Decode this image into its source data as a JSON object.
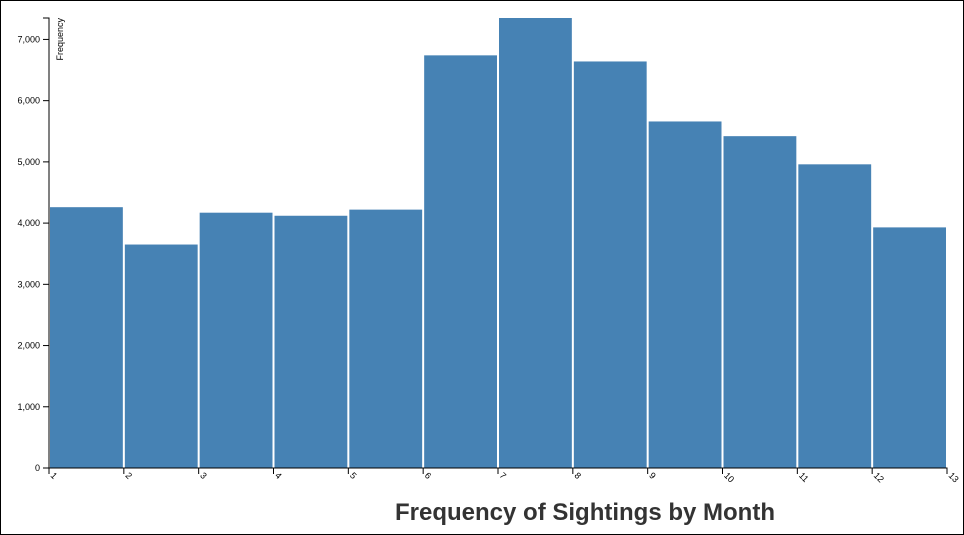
{
  "chart_data": {
    "type": "bar",
    "title": "Frequency of Sightings by Month",
    "xlabel": "",
    "ylabel": "Frequency",
    "x_ticks": [
      "1",
      "2",
      "3",
      "4",
      "5",
      "6",
      "7",
      "8",
      "9",
      "10",
      "11",
      "12",
      "13"
    ],
    "bins": [
      {
        "x0": 1,
        "x1": 2,
        "value": 4260
      },
      {
        "x0": 2,
        "x1": 3,
        "value": 3650
      },
      {
        "x0": 3,
        "x1": 4,
        "value": 4170
      },
      {
        "x0": 4,
        "x1": 5,
        "value": 4120
      },
      {
        "x0": 5,
        "x1": 6,
        "value": 4220
      },
      {
        "x0": 6,
        "x1": 7,
        "value": 6740
      },
      {
        "x0": 7,
        "x1": 8,
        "value": 7350
      },
      {
        "x0": 8,
        "x1": 9,
        "value": 6640
      },
      {
        "x0": 9,
        "x1": 10,
        "value": 5660
      },
      {
        "x0": 10,
        "x1": 11,
        "value": 5420
      },
      {
        "x0": 11,
        "x1": 12,
        "value": 4960
      },
      {
        "x0": 12,
        "x1": 13,
        "value": 3930
      }
    ],
    "xlim": [
      1,
      13
    ],
    "ylim": [
      0,
      7350
    ],
    "y_ticks": [
      "0",
      "1,000",
      "2,000",
      "3,000",
      "4,000",
      "5,000",
      "6,000",
      "7,000"
    ],
    "bar_color": "#4682b4",
    "grid": false,
    "legend": "none"
  }
}
